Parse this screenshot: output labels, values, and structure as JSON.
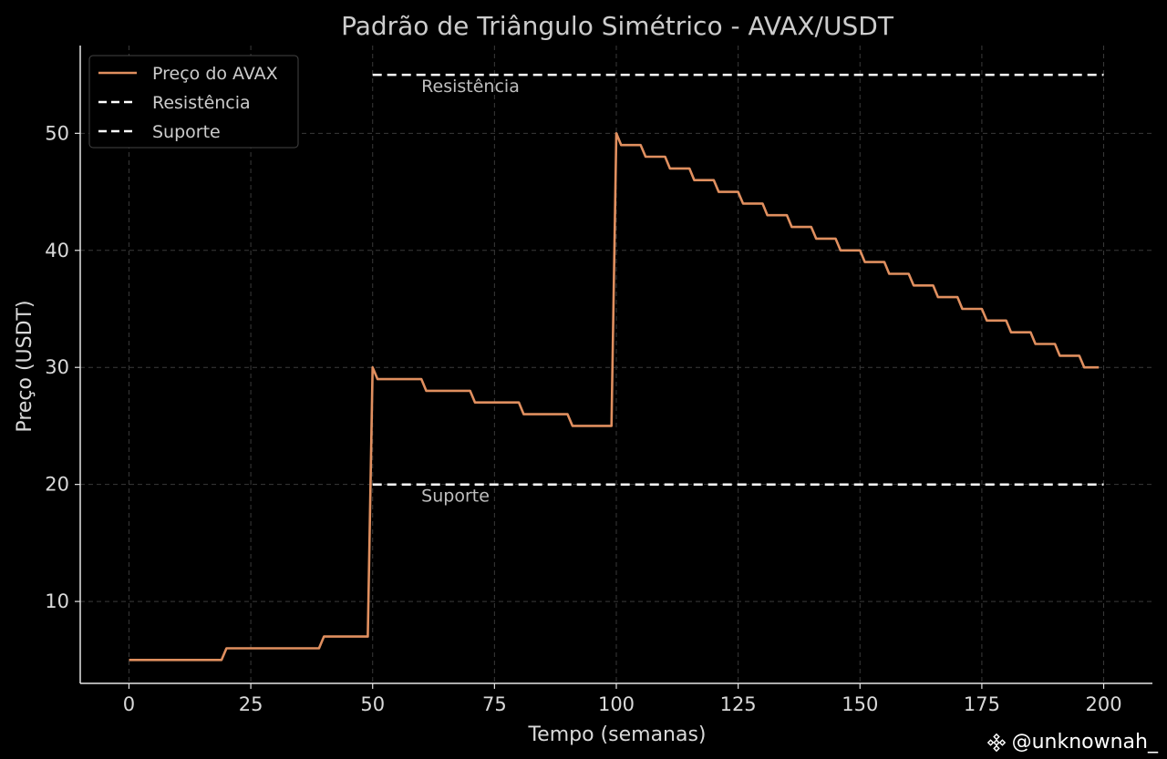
{
  "chart_data": {
    "type": "line",
    "title": "Padrão de Triângulo Simétrico - AVAX/USDT",
    "xlabel": "Tempo (semanas)",
    "ylabel": "Preço (USDT)",
    "xlim": [
      -10,
      210
    ],
    "ylim": [
      3,
      57.5
    ],
    "x_ticks": [
      0,
      25,
      50,
      75,
      100,
      125,
      150,
      175,
      200
    ],
    "y_ticks": [
      10,
      20,
      30,
      40,
      50
    ],
    "grid": true,
    "legend_position": "top-left",
    "series": [
      {
        "name": "Preço do AVAX",
        "color": "#e08f5f",
        "style": "solid",
        "x": [
          0,
          19,
          20,
          39,
          40,
          49,
          50,
          51,
          60,
          61,
          70,
          71,
          80,
          81,
          90,
          91,
          99,
          100,
          101,
          105,
          106,
          110,
          111,
          115,
          116,
          120,
          121,
          125,
          126,
          130,
          131,
          135,
          136,
          140,
          141,
          145,
          146,
          150,
          151,
          155,
          156,
          160,
          161,
          165,
          166,
          170,
          171,
          175,
          176,
          180,
          181,
          185,
          186,
          190,
          191,
          195,
          196,
          199
        ],
        "y": [
          5,
          5,
          6,
          6,
          7,
          7,
          30,
          29,
          29,
          28,
          28,
          27,
          27,
          26,
          26,
          25,
          25,
          50,
          49,
          49,
          48,
          48,
          47,
          47,
          46,
          46,
          45,
          45,
          44,
          44,
          43,
          43,
          42,
          42,
          41,
          41,
          40,
          40,
          39,
          39,
          38,
          38,
          37,
          37,
          36,
          36,
          35,
          35,
          34,
          34,
          33,
          33,
          32,
          32,
          31,
          31,
          30,
          30
        ]
      },
      {
        "name": "Resistência",
        "color": "#ffffff",
        "style": "dashed",
        "x": [
          50,
          200
        ],
        "y": [
          55,
          55
        ]
      },
      {
        "name": "Suporte",
        "color": "#ffffff",
        "style": "dashed",
        "x": [
          50,
          200
        ],
        "y": [
          20,
          20
        ]
      }
    ],
    "annotations": [
      {
        "text": "Resistência",
        "x": 60,
        "y": 54
      },
      {
        "text": "Suporte",
        "x": 60,
        "y": 19
      }
    ]
  },
  "watermark": {
    "text": "@unknownah_",
    "icon": "binance-logo-icon"
  }
}
